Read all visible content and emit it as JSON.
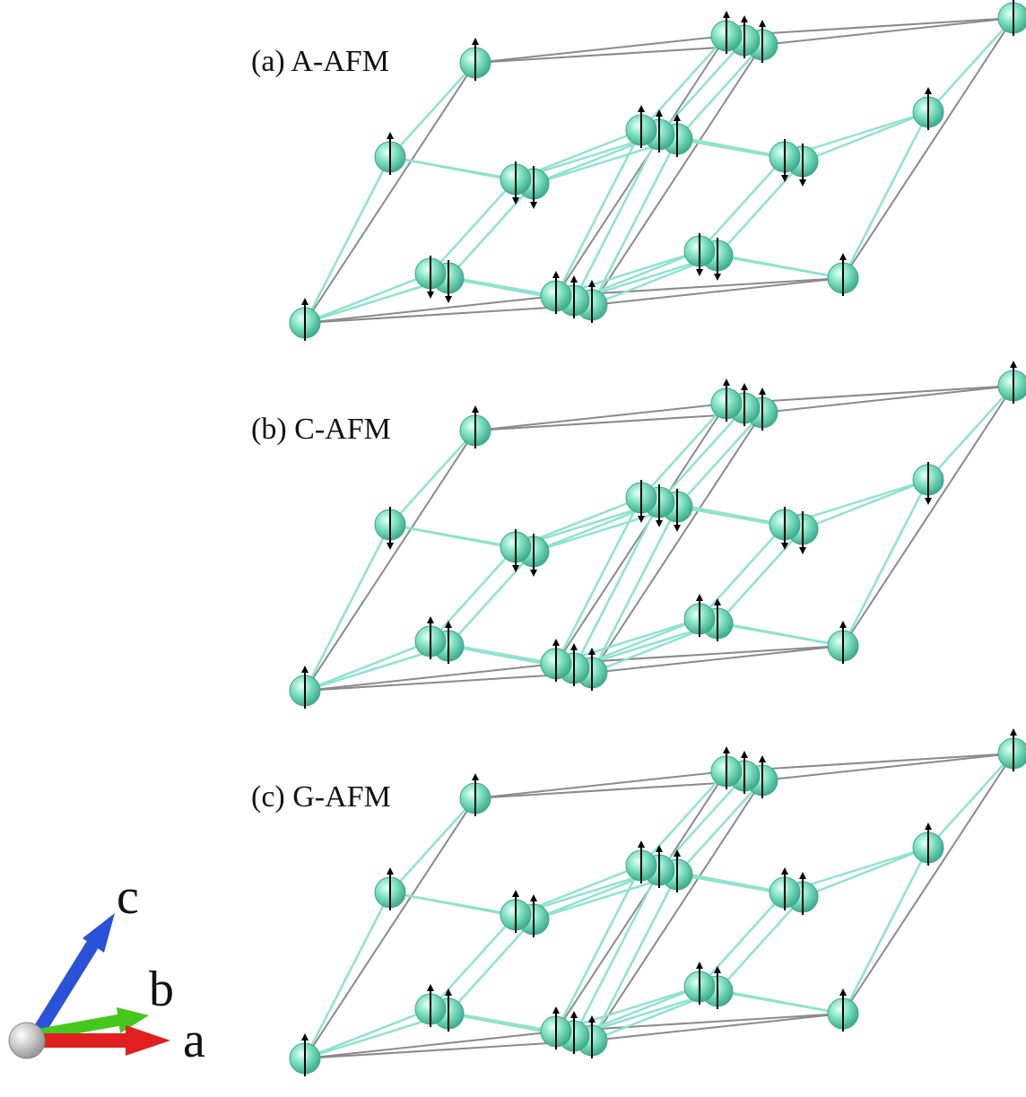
{
  "panels": [
    {
      "label": "(a) A-AFM",
      "ordering": "A-AFM"
    },
    {
      "label": "(b) C-AFM",
      "ordering": "C-AFM"
    },
    {
      "label": "(c) G-AFM",
      "ordering": "G-AFM"
    }
  ],
  "axes": {
    "a": {
      "label": "a",
      "color": "#e02020"
    },
    "b": {
      "label": "b",
      "color": "#44c81e"
    },
    "c": {
      "label": "c",
      "color": "#2a52d8"
    }
  },
  "colors": {
    "atom": "#7fe0c0",
    "atom_edge": "#3fa88a",
    "bond": "#8fe2cf",
    "cell": "#8a8a8a",
    "spin": "#000000",
    "origin": "#cfcfcf"
  }
}
